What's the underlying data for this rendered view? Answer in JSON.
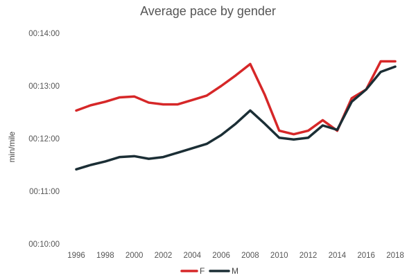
{
  "chart_data": {
    "type": "line",
    "title": "Average pace by gender",
    "ylabel": "min/mile",
    "xlabel": "",
    "x": [
      1996,
      1997,
      1998,
      1999,
      2000,
      2001,
      2002,
      2003,
      2004,
      2005,
      2006,
      2007,
      2008,
      2009,
      2010,
      2011,
      2012,
      2013,
      2014,
      2015,
      2016,
      2017,
      2018
    ],
    "x_ticks": [
      "1996",
      "1998",
      "2000",
      "2002",
      "2004",
      "2006",
      "2008",
      "2010",
      "2012",
      "2014",
      "2016",
      "2018"
    ],
    "y_ticks": [
      "00:10:00",
      "00:11:00",
      "00:12:00",
      "00:13:00",
      "00:14:00"
    ],
    "y_unit": "seconds",
    "ylim": [
      600,
      840
    ],
    "grid": false,
    "legend_position": "bottom",
    "series": [
      {
        "name": "F",
        "color": "#d62728",
        "values": [
          752,
          758,
          762,
          767,
          768,
          761,
          759,
          759,
          764,
          769,
          780,
          792,
          805,
          770,
          729,
          725,
          729,
          741,
          729,
          766,
          776,
          808,
          808
        ]
      },
      {
        "name": "M",
        "color": "#1b2e35",
        "values": [
          685,
          690,
          694,
          699,
          700,
          697,
          699,
          704,
          709,
          714,
          724,
          737,
          752,
          737,
          721,
          719,
          721,
          735,
          730,
          762,
          776,
          796,
          802
        ]
      }
    ]
  }
}
